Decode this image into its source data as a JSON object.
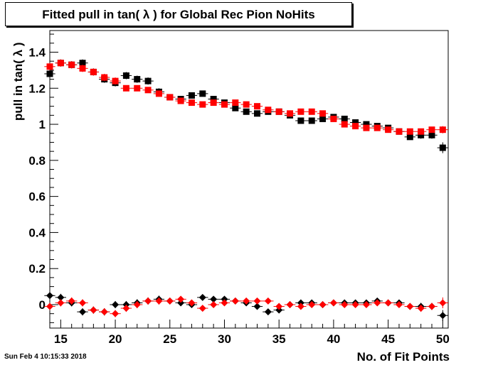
{
  "title": "Fitted pull in tan( λ ) for Global Rec Pion NoHits",
  "datestamp": "Sun Feb  4 10:15:33 2018",
  "chart_data": {
    "type": "scatter",
    "title": "Fitted pull in tan( λ ) for Global Rec Pion NoHits",
    "xlabel": "No. of Fit Points",
    "ylabel": "pull in tan( λ )",
    "xlim": [
      14,
      50.5
    ],
    "ylim": [
      -0.13,
      1.52
    ],
    "xticks": [
      15,
      20,
      25,
      30,
      35,
      40,
      45,
      50
    ],
    "yticks": [
      0,
      0.2,
      0.4,
      0.6,
      0.8,
      1,
      1.2,
      1.4
    ],
    "ytick_labels": [
      "0",
      "0.2",
      "0.4",
      "0.6",
      "0.8",
      "1",
      "1.2",
      "1.4"
    ],
    "grid": false,
    "x": [
      14,
      15,
      16,
      17,
      18,
      19,
      20,
      21,
      22,
      23,
      24,
      25,
      26,
      27,
      28,
      29,
      30,
      31,
      32,
      33,
      34,
      35,
      36,
      37,
      38,
      39,
      40,
      41,
      42,
      43,
      44,
      45,
      46,
      47,
      48,
      49,
      50
    ],
    "series": [
      {
        "marker": "square",
        "color": "#000000",
        "values": [
          1.28,
          1.34,
          1.33,
          1.34,
          1.29,
          1.25,
          1.23,
          1.27,
          1.25,
          1.24,
          1.18,
          1.15,
          1.14,
          1.16,
          1.17,
          1.14,
          1.12,
          1.09,
          1.07,
          1.06,
          1.07,
          1.07,
          1.05,
          1.02,
          1.02,
          1.03,
          1.04,
          1.03,
          1.01,
          1.0,
          0.99,
          0.98,
          0.96,
          0.93,
          0.94,
          0.94,
          0.87
        ],
        "errors": [
          0.02,
          0.02,
          0.02,
          0.02,
          0.02,
          0.02,
          0.02,
          0.02,
          0.02,
          0.02,
          0.02,
          0.015,
          0.015,
          0.015,
          0.015,
          0.015,
          0.015,
          0.015,
          0.015,
          0.015,
          0.015,
          0.015,
          0.015,
          0.015,
          0.015,
          0.015,
          0.015,
          0.015,
          0.015,
          0.015,
          0.015,
          0.015,
          0.015,
          0.015,
          0.02,
          0.02,
          0.03
        ]
      },
      {
        "marker": "square",
        "color": "#ff0000",
        "values": [
          1.32,
          1.34,
          1.33,
          1.31,
          1.29,
          1.26,
          1.24,
          1.2,
          1.2,
          1.19,
          1.17,
          1.15,
          1.13,
          1.12,
          1.11,
          1.12,
          1.11,
          1.12,
          1.11,
          1.1,
          1.08,
          1.07,
          1.06,
          1.07,
          1.07,
          1.06,
          1.03,
          1.0,
          0.99,
          0.98,
          0.98,
          0.97,
          0.96,
          0.96,
          0.96,
          0.97,
          0.97
        ],
        "errors": [
          0.02,
          0.02,
          0.02,
          0.02,
          0.02,
          0.02,
          0.02,
          0.015,
          0.015,
          0.015,
          0.015,
          0.015,
          0.015,
          0.015,
          0.015,
          0.015,
          0.015,
          0.015,
          0.015,
          0.015,
          0.015,
          0.015,
          0.015,
          0.015,
          0.015,
          0.015,
          0.015,
          0.015,
          0.015,
          0.015,
          0.015,
          0.015,
          0.015,
          0.015,
          0.015,
          0.015,
          0.02
        ]
      },
      {
        "marker": "diamond",
        "color": "#000000",
        "values": [
          0.05,
          0.04,
          0.01,
          -0.04,
          -0.03,
          -0.04,
          0.0,
          0.0,
          0.01,
          0.02,
          0.03,
          0.02,
          0.01,
          0.0,
          0.04,
          0.03,
          0.03,
          0.02,
          0.01,
          -0.01,
          -0.04,
          -0.03,
          0.0,
          0.01,
          0.01,
          0.0,
          0.01,
          0.01,
          0.01,
          0.01,
          0.02,
          0.01,
          0.01,
          -0.01,
          -0.01,
          -0.01,
          -0.06
        ],
        "errors": [
          0.02,
          0.02,
          0.02,
          0.02,
          0.02,
          0.02,
          0.02,
          0.02,
          0.02,
          0.02,
          0.02,
          0.015,
          0.015,
          0.015,
          0.015,
          0.015,
          0.015,
          0.015,
          0.015,
          0.015,
          0.015,
          0.015,
          0.015,
          0.015,
          0.015,
          0.015,
          0.015,
          0.015,
          0.015,
          0.015,
          0.015,
          0.015,
          0.015,
          0.015,
          0.02,
          0.02,
          0.03
        ]
      },
      {
        "marker": "diamond",
        "color": "#ff0000",
        "values": [
          -0.01,
          0.01,
          0.02,
          0.01,
          -0.03,
          -0.04,
          -0.05,
          -0.02,
          0.0,
          0.02,
          0.02,
          0.02,
          0.03,
          0.01,
          -0.02,
          0.0,
          0.01,
          0.02,
          0.02,
          0.02,
          0.02,
          -0.01,
          0.0,
          -0.01,
          0.0,
          0.0,
          0.01,
          0.0,
          0.0,
          0.0,
          0.01,
          0.01,
          0.0,
          -0.01,
          -0.02,
          -0.01,
          0.01
        ],
        "errors": [
          0.02,
          0.02,
          0.02,
          0.02,
          0.02,
          0.02,
          0.02,
          0.02,
          0.02,
          0.02,
          0.02,
          0.015,
          0.015,
          0.015,
          0.015,
          0.015,
          0.015,
          0.015,
          0.015,
          0.015,
          0.015,
          0.015,
          0.015,
          0.015,
          0.015,
          0.015,
          0.015,
          0.015,
          0.015,
          0.015,
          0.015,
          0.015,
          0.015,
          0.015,
          0.02,
          0.02,
          0.03
        ]
      }
    ]
  }
}
